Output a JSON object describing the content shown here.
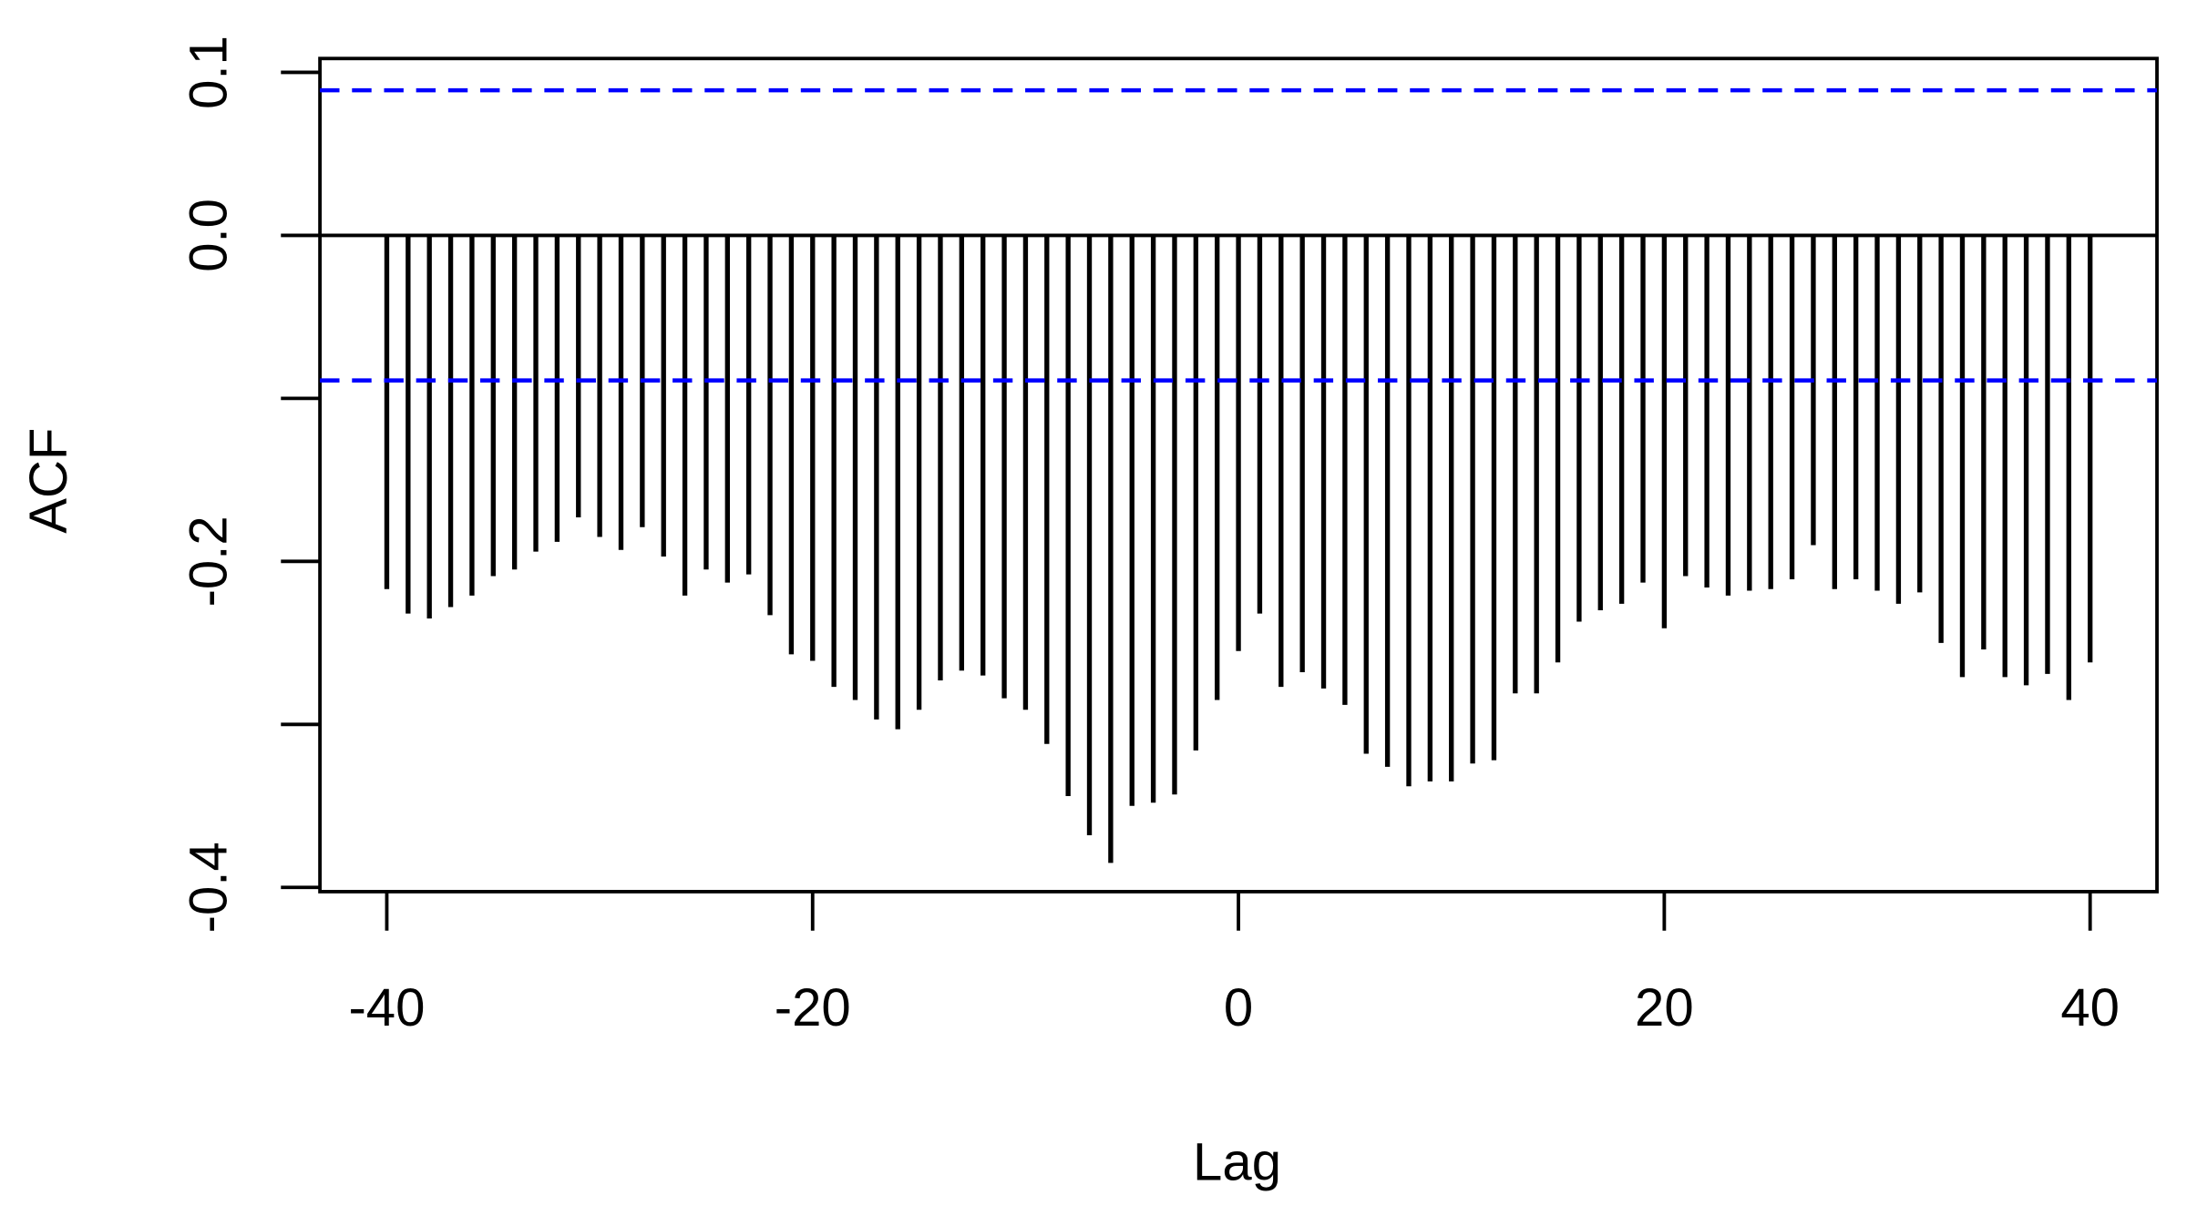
{
  "chart_data": {
    "type": "stem",
    "xlabel": "Lag",
    "ylabel": "ACF",
    "x": [
      -40,
      -39,
      -38,
      -37,
      -36,
      -35,
      -34,
      -33,
      -32,
      -31,
      -30,
      -29,
      -28,
      -27,
      -26,
      -25,
      -24,
      -23,
      -22,
      -21,
      -20,
      -19,
      -18,
      -17,
      -16,
      -15,
      -14,
      -13,
      -12,
      -11,
      -10,
      -9,
      -8,
      -7,
      -6,
      -5,
      -4,
      -3,
      -2,
      -1,
      0,
      1,
      2,
      3,
      4,
      5,
      6,
      7,
      8,
      9,
      10,
      11,
      12,
      13,
      14,
      15,
      16,
      17,
      18,
      19,
      20,
      21,
      22,
      23,
      24,
      25,
      26,
      27,
      28,
      29,
      30,
      31,
      32,
      33,
      34,
      35,
      36,
      37,
      38,
      39,
      40
    ],
    "values": [
      -0.217,
      -0.232,
      -0.235,
      -0.228,
      -0.221,
      -0.209,
      -0.205,
      -0.194,
      -0.188,
      -0.173,
      -0.185,
      -0.193,
      -0.179,
      -0.197,
      -0.221,
      -0.205,
      -0.213,
      -0.208,
      -0.233,
      -0.257,
      -0.261,
      -0.277,
      -0.285,
      -0.297,
      -0.303,
      -0.291,
      -0.273,
      -0.267,
      -0.27,
      -0.284,
      -0.291,
      -0.312,
      -0.344,
      -0.368,
      -0.385,
      -0.35,
      -0.348,
      -0.343,
      -0.316,
      -0.285,
      -0.255,
      -0.232,
      -0.277,
      -0.268,
      -0.278,
      -0.288,
      -0.318,
      -0.326,
      -0.338,
      -0.335,
      -0.335,
      -0.324,
      -0.322,
      -0.281,
      -0.281,
      -0.262,
      -0.237,
      -0.23,
      -0.226,
      -0.213,
      -0.241,
      -0.209,
      -0.216,
      -0.221,
      -0.218,
      -0.217,
      -0.211,
      -0.19,
      -0.217,
      -0.211,
      -0.218,
      -0.226,
      -0.219,
      -0.25,
      -0.271,
      -0.254,
      -0.271,
      -0.276,
      -0.269,
      -0.285,
      -0.262
    ],
    "color": "#000000",
    "confidence_bounds": [
      0.089,
      -0.089
    ],
    "confidence_color": "#0000ff",
    "xlim": [
      -43.14,
      43.14
    ],
    "xticks": [
      -40,
      -20,
      0,
      20,
      40
    ],
    "ylim": [
      -0.4026,
      0.1085
    ],
    "yticks": [
      0.1,
      {
        "value": 0,
        "label": "0.0"
      },
      {
        "value": -0.1,
        "label": null
      },
      -0.2,
      {
        "value": -0.3,
        "label": null
      },
      -0.4
    ]
  }
}
